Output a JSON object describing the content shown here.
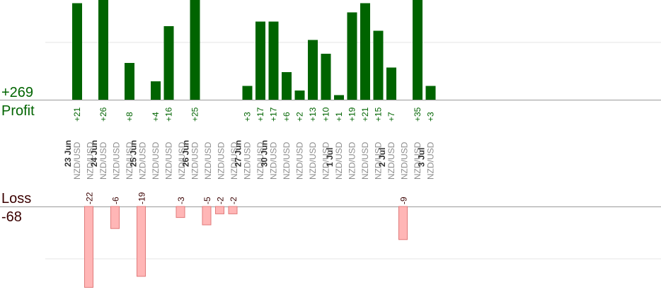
{
  "summary": {
    "profit_total": "+269",
    "profit_label": "Profit",
    "loss_label": "Loss",
    "loss_total": "-68"
  },
  "colors": {
    "profit_bar": "#006400",
    "profit_text": "#006400",
    "loss_bar_fill": "#ffb6b6",
    "loss_bar_stroke": "#e07a7a",
    "loss_text": "#3a0000",
    "symbol_text": "#8c8c8c",
    "date_text": "#333333"
  },
  "chart_data": {
    "type": "bar",
    "series": [
      {
        "name": "Profit",
        "direction": "up"
      },
      {
        "name": "Loss",
        "direction": "down"
      }
    ],
    "profit_scale_max_visible": 20,
    "loss_scale_max_visible": 22,
    "trades": [
      {
        "date": "23 Jun",
        "symbol": "NZD/USD",
        "profit": 21
      },
      {
        "symbol": "NZD/USD",
        "loss": -22
      },
      {
        "date": "24 Jun",
        "symbol": "NZD/USD",
        "profit": 26
      },
      {
        "symbol": "NZD/USD",
        "loss": -6
      },
      {
        "symbol": "NZD/USD",
        "profit": 8
      },
      {
        "date": "25 Jun",
        "symbol": "NZD/USD",
        "loss": -19
      },
      {
        "symbol": "NZD/USD",
        "profit": 4
      },
      {
        "symbol": "NZD/USD",
        "profit": 16
      },
      {
        "symbol": "NZD/USD",
        "loss": -3
      },
      {
        "date": "26 Jun",
        "symbol": "NZD/USD",
        "profit": 25
      },
      {
        "symbol": "NZD/USD",
        "loss": -5
      },
      {
        "symbol": "NZD/USD",
        "loss": -2
      },
      {
        "symbol": "NZD/USD",
        "loss": -2
      },
      {
        "date": "27 Jun",
        "symbol": "NZD/USD",
        "profit": 3
      },
      {
        "symbol": "NZD/USD",
        "profit": 17
      },
      {
        "date": "30 Jun",
        "symbol": "NZD/USD",
        "profit": 17
      },
      {
        "symbol": "NZD/USD",
        "profit": 6
      },
      {
        "symbol": "NZD/USD",
        "profit": 2
      },
      {
        "symbol": "NZD/USD",
        "profit": 13
      },
      {
        "symbol": "NZD/USD",
        "profit": 10
      },
      {
        "date": "1 Jul",
        "symbol": "NZD/USD",
        "profit": 1
      },
      {
        "symbol": "NZD/USD",
        "profit": 19
      },
      {
        "symbol": "NZD/USD",
        "profit": 21
      },
      {
        "symbol": "NZD/USD",
        "profit": 15
      },
      {
        "date": "2 Jul",
        "symbol": "NZD/USD",
        "profit": 7
      },
      {
        "symbol": "NZD/USD",
        "loss": -9
      },
      {
        "symbol": "NZD/USD",
        "profit": 35
      },
      {
        "date": "3 Jul",
        "symbol": "NZD/USD",
        "profit": 3
      }
    ]
  }
}
